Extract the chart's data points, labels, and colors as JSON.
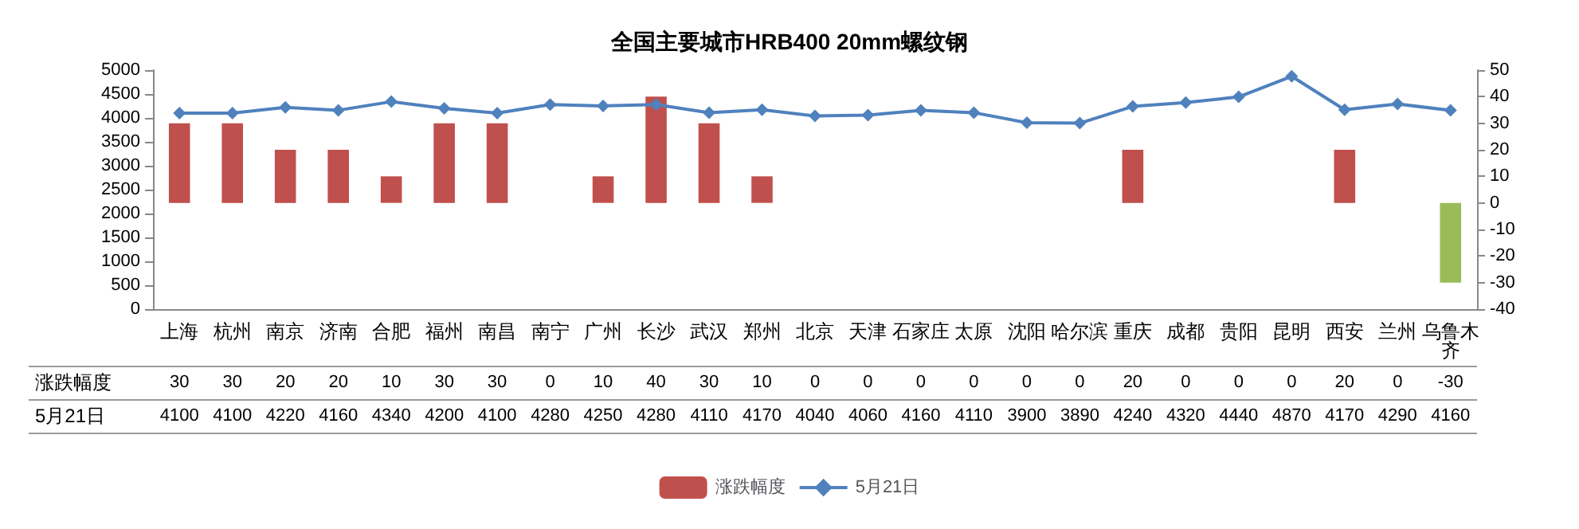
{
  "chart_data": {
    "type": "bar",
    "title": "全国主要城市HRB400 20mm螺纹钢",
    "categories": [
      "上海",
      "杭州",
      "南京",
      "济南",
      "合肥",
      "福州",
      "南昌",
      "南宁",
      "广州",
      "长沙",
      "武汉",
      "郑州",
      "北京",
      "天津",
      "石家庄",
      "太原",
      "沈阳",
      "哈尔滨",
      "重庆",
      "成都",
      "贵阳",
      "昆明",
      "西安",
      "兰州",
      "乌鲁木齐"
    ],
    "series": [
      {
        "name": "涨跌幅度",
        "axis": "y2",
        "color": "#c0504d",
        "colors": [
          "#c0504d",
          "#c0504d",
          "#c0504d",
          "#c0504d",
          "#c0504d",
          "#c0504d",
          "#c0504d",
          "#c0504d",
          "#c0504d",
          "#c0504d",
          "#c0504d",
          "#c0504d",
          "#c0504d",
          "#c0504d",
          "#c0504d",
          "#c0504d",
          "#c0504d",
          "#c0504d",
          "#c0504d",
          "#c0504d",
          "#c0504d",
          "#c0504d",
          "#c0504d",
          "#c0504d",
          "#9bbb59"
        ],
        "values": [
          30,
          30,
          20,
          20,
          10,
          30,
          30,
          0,
          10,
          40,
          30,
          10,
          0,
          0,
          0,
          0,
          0,
          0,
          20,
          0,
          0,
          0,
          20,
          0,
          -30
        ]
      },
      {
        "name": "5月21日",
        "type": "line",
        "color": "#4f81bd",
        "values": [
          4100,
          4100,
          4220,
          4160,
          4340,
          4200,
          4100,
          4280,
          4250,
          4280,
          4110,
          4170,
          4040,
          4060,
          4160,
          4110,
          3900,
          3890,
          4240,
          4320,
          4440,
          4870,
          4170,
          4290,
          4160
        ]
      }
    ],
    "ylim": [
      0,
      5000
    ],
    "yticks": [
      0,
      500,
      1000,
      1500,
      2000,
      2500,
      3000,
      3500,
      4000,
      4500,
      5000
    ],
    "y2lim": [
      -40,
      50
    ],
    "y2ticks": [
      -40,
      -30,
      -20,
      -10,
      0,
      10,
      20,
      30,
      40,
      50
    ],
    "data_labels": true,
    "legend": "bottom",
    "marker": "diamond",
    "line_style": "solid"
  }
}
